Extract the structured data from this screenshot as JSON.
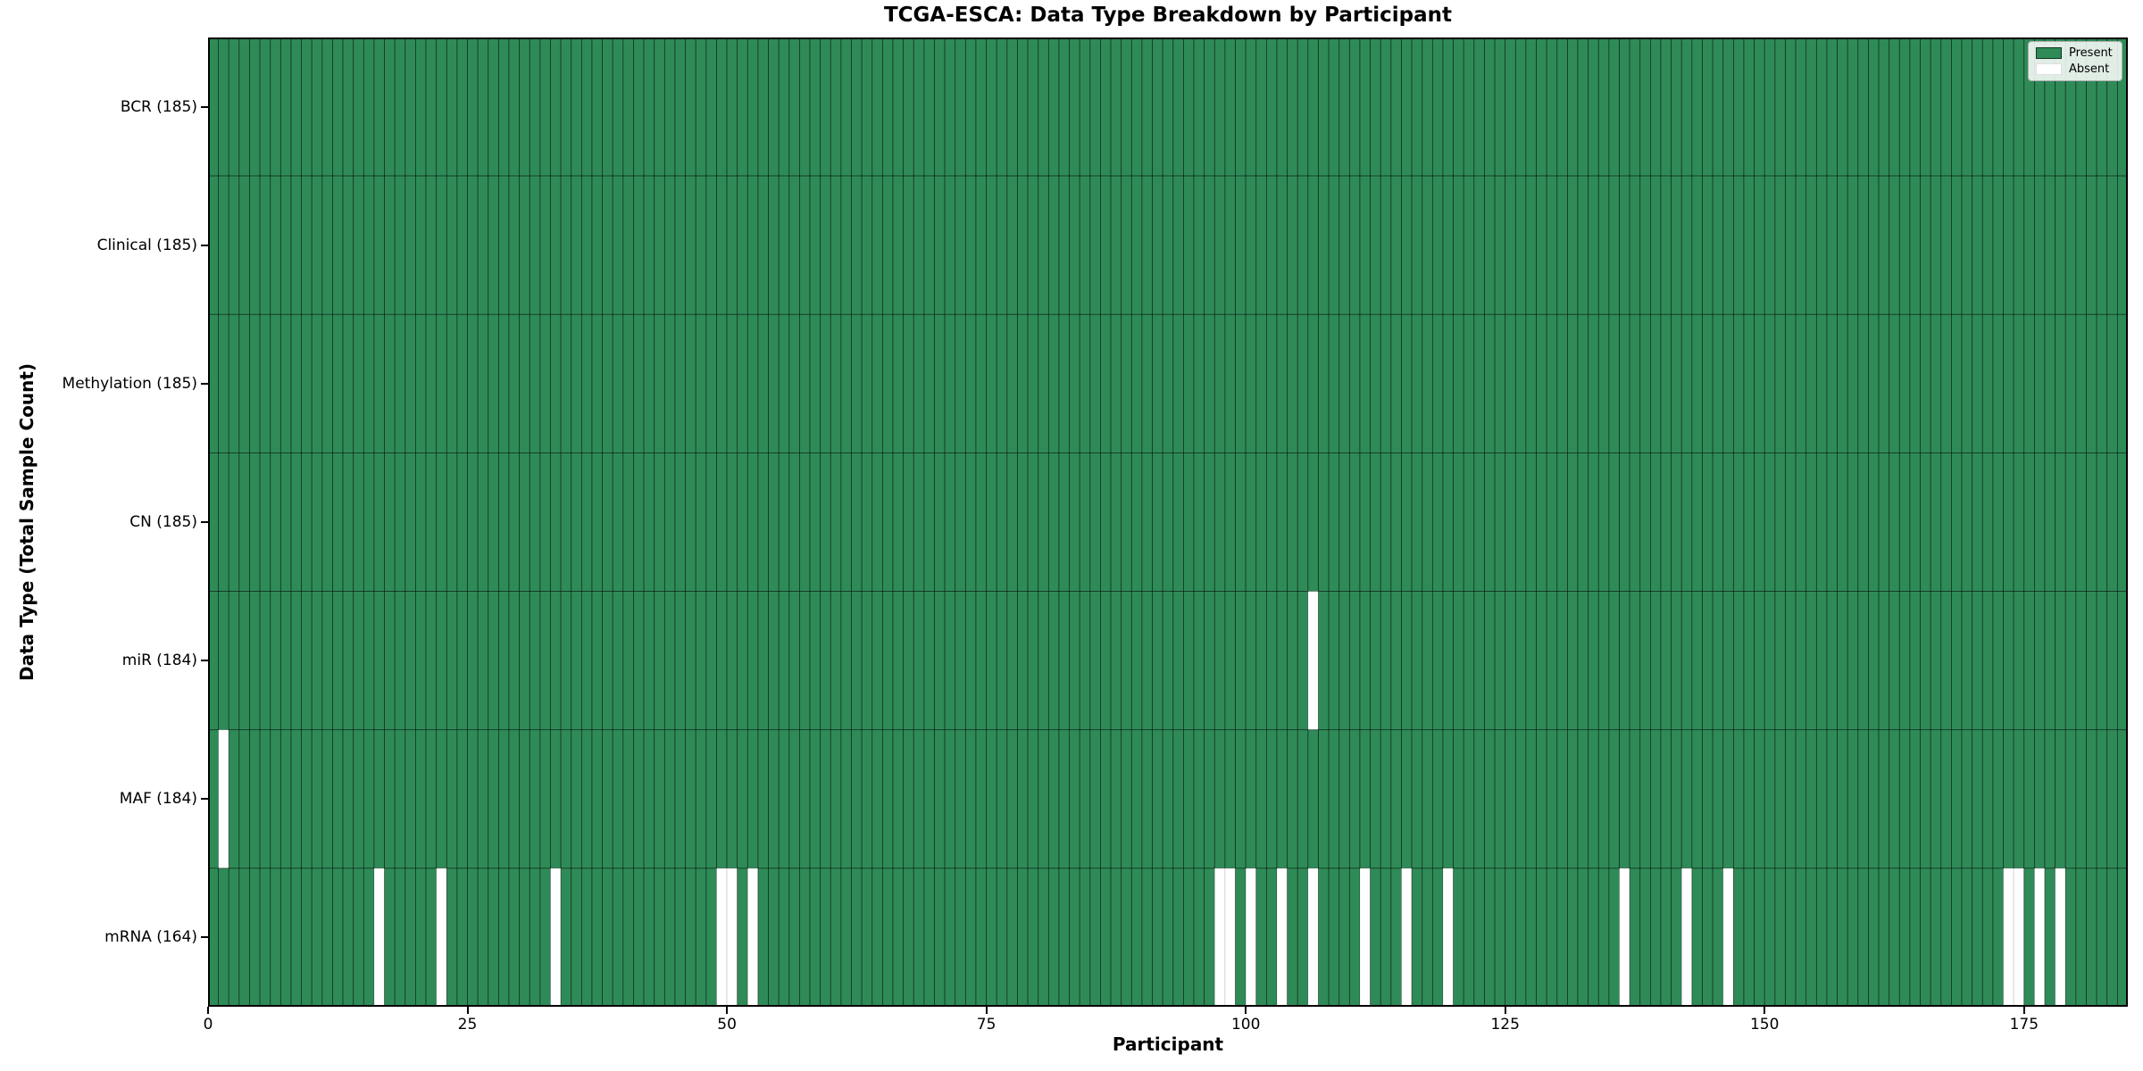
{
  "title": "TCGA-ESCA: Data Type Breakdown by Participant",
  "axes": {
    "xlabel": "Participant",
    "ylabel": "Data Type (Total Sample Count)"
  },
  "legend": {
    "present_label": "Present",
    "absent_label": "Absent"
  },
  "colors": {
    "present": "#2E8B57",
    "absent": "#ffffff",
    "bar_edge": "rgba(0,0,0,0.55)",
    "absent_edge": "rgba(0,0,0,0.15)",
    "axis": "#000000"
  },
  "chart_data": {
    "type": "heatmap",
    "title": "TCGA-ESCA: Data Type Breakdown by Participant",
    "xlabel": "Participant",
    "ylabel": "Data Type (Total Sample Count)",
    "legend": [
      "Present",
      "Absent"
    ],
    "legend_position": "upper right",
    "n_participants": 185,
    "x_ticks": [
      0,
      25,
      50,
      75,
      100,
      125,
      150,
      175
    ],
    "rows": [
      {
        "label": "BCR (185)",
        "data_type": "BCR",
        "total": 185,
        "absent_participants": []
      },
      {
        "label": "Clinical (185)",
        "data_type": "Clinical",
        "total": 185,
        "absent_participants": []
      },
      {
        "label": "Methylation (185)",
        "data_type": "Methylation",
        "total": 185,
        "absent_participants": []
      },
      {
        "label": "CN (185)",
        "data_type": "CN",
        "total": 185,
        "absent_participants": []
      },
      {
        "label": "miR (184)",
        "data_type": "miR",
        "total": 184,
        "absent_participants": [
          106
        ]
      },
      {
        "label": "MAF (184)",
        "data_type": "MAF",
        "total": 184,
        "absent_participants": [
          1
        ]
      },
      {
        "label": "mRNA (164)",
        "data_type": "mRNA",
        "total": 164,
        "absent_participants": [
          16,
          22,
          33,
          49,
          50,
          52,
          97,
          98,
          100,
          103,
          106,
          111,
          115,
          119,
          136,
          142,
          146,
          173,
          174,
          176,
          178
        ]
      }
    ]
  }
}
